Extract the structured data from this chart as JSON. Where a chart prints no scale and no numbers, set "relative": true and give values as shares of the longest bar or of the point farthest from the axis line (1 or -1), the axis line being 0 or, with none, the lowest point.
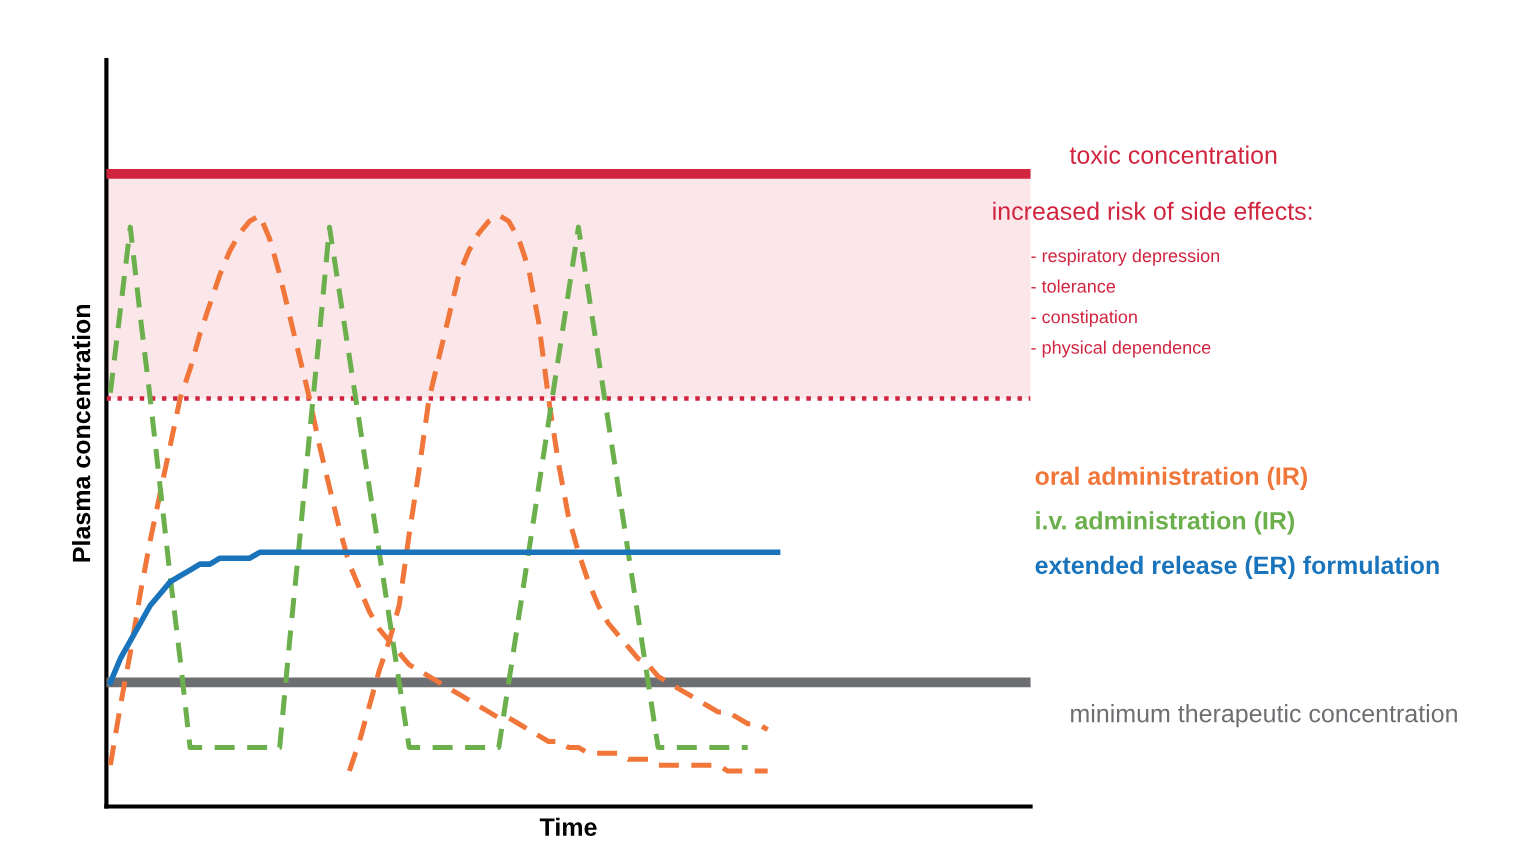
{
  "chart_data": {
    "type": "line",
    "relative": true,
    "xlabel": "Time",
    "ylabel": "Plasma concentration",
    "categories": [
      null,
      null,
      null,
      null,
      null,
      null,
      null,
      null,
      null,
      null,
      null,
      null,
      null,
      null,
      null,
      null,
      null,
      null,
      null,
      null,
      null,
      null,
      null,
      null,
      null,
      null,
      null,
      null,
      null,
      null,
      null,
      null,
      null,
      null,
      null,
      null,
      null,
      null,
      null,
      null,
      null,
      null,
      null,
      null,
      null,
      null,
      null,
      null,
      null,
      null,
      null,
      null,
      null,
      null,
      null,
      null,
      null,
      null,
      null,
      null,
      null,
      null,
      null,
      null,
      null,
      null,
      null,
      null,
      null,
      null,
      null,
      null,
      null,
      null,
      null,
      null,
      null,
      null,
      null,
      null,
      null,
      null,
      null,
      null,
      null,
      null,
      null,
      null,
      null,
      null,
      null,
      null,
      null
    ],
    "series": [
      {
        "name": "oral administration (IR)",
        "color": "#f0763a",
        "line_style": "dashed",
        "values": [
          0.07,
          0.17,
          0.26,
          0.36,
          0.45,
          0.53,
          0.61,
          0.69,
          0.74,
          0.8,
          0.85,
          0.9,
          0.94,
          0.97,
          0.99,
          1.0,
          0.96,
          0.9,
          0.83,
          0.76,
          0.69,
          0.61,
          0.54,
          0.47,
          0.41,
          0.37,
          0.33,
          0.3,
          0.28,
          0.26,
          0.24,
          0.23,
          0.22,
          0.21,
          0.2,
          0.19,
          0.18,
          0.17,
          0.16,
          0.15,
          0.15,
          0.14,
          0.13,
          0.12,
          0.11,
          0.11,
          0.1,
          0.1,
          0.09,
          0.09,
          0.09,
          0.09,
          0.08,
          0.08,
          0.08,
          0.07,
          0.07,
          0.07,
          0.07,
          0.07,
          0.07,
          0.07,
          0.06,
          0.06,
          0.06,
          0.06,
          0.06,
          null,
          null,
          null,
          null,
          null,
          null,
          null,
          null,
          null,
          null,
          null,
          null,
          null,
          null,
          null,
          null,
          null,
          null,
          null,
          null,
          null,
          null,
          null,
          null,
          null,
          null
        ]
      },
      {
        "color": "#f0763a",
        "line_style": "dashed",
        "values": [
          null,
          null,
          null,
          null,
          null,
          null,
          null,
          null,
          null,
          null,
          null,
          null,
          null,
          null,
          null,
          null,
          null,
          null,
          null,
          null,
          null,
          null,
          null,
          null,
          0.06,
          0.11,
          0.17,
          0.23,
          0.28,
          0.34,
          0.46,
          0.57,
          0.69,
          0.76,
          0.83,
          0.9,
          0.94,
          0.97,
          0.99,
          1.0,
          0.99,
          0.96,
          0.91,
          0.82,
          0.69,
          0.58,
          0.49,
          0.43,
          0.38,
          0.34,
          0.31,
          0.29,
          0.27,
          0.25,
          0.24,
          0.22,
          0.21,
          0.2,
          0.19,
          0.18,
          0.17,
          0.16,
          0.16,
          0.15,
          0.14,
          0.14,
          0.13,
          null,
          null,
          null,
          null,
          null,
          null,
          null,
          null,
          null,
          null,
          null,
          null,
          null,
          null,
          null,
          null,
          null,
          null,
          null,
          null,
          null,
          null,
          null,
          null,
          null,
          null
        ]
      },
      {
        "name": "i.v. administration (IR)",
        "color": "#6cb04e",
        "line_style": "dashed",
        "values": [
          0.7,
          0.84,
          0.98,
          0.83,
          0.69,
          0.54,
          0.39,
          0.25,
          0.1,
          0.1,
          0.1,
          0.1,
          0.1,
          0.1,
          0.1,
          0.1,
          0.1,
          0.1,
          0.28,
          0.45,
          0.63,
          0.8,
          0.98,
          0.87,
          0.76,
          0.65,
          0.54,
          0.43,
          0.32,
          0.21,
          0.1,
          0.1,
          0.1,
          0.1,
          0.1,
          0.1,
          0.1,
          0.1,
          0.1,
          0.1,
          0.21,
          0.32,
          0.43,
          0.54,
          0.65,
          0.76,
          0.87,
          0.98,
          0.87,
          0.76,
          0.65,
          0.54,
          0.43,
          0.32,
          0.21,
          0.1,
          0.1,
          0.1,
          0.1,
          0.1,
          0.1,
          0.1,
          0.1,
          0.1,
          0.1,
          null,
          null,
          null,
          null,
          null,
          null,
          null,
          null,
          null,
          null,
          null,
          null,
          null,
          null,
          null,
          null,
          null,
          null,
          null,
          null,
          null,
          null,
          null,
          null,
          null,
          null,
          null,
          null
        ]
      },
      {
        "name": "extended release (ER) formulation",
        "color": "#1a74bb",
        "line_style": "solid",
        "values": [
          0.21,
          0.25,
          0.28,
          0.31,
          0.34,
          0.36,
          0.38,
          0.39,
          0.4,
          0.41,
          0.41,
          0.42,
          0.42,
          0.42,
          0.42,
          0.43,
          0.43,
          0.43,
          0.43,
          0.43,
          0.43,
          0.43,
          0.43,
          0.43,
          0.43,
          0.43,
          0.43,
          0.43,
          0.43,
          0.43,
          0.43,
          0.43,
          0.43,
          0.43,
          0.43,
          0.43,
          0.43,
          0.43,
          0.43,
          0.43,
          0.43,
          0.43,
          0.43,
          0.43,
          0.43,
          0.43,
          0.43,
          0.43,
          0.43,
          0.43,
          0.43,
          0.43,
          0.43,
          0.43,
          0.43,
          0.43,
          0.43,
          0.43,
          0.43,
          0.43,
          0.43,
          0.43,
          0.43,
          0.43,
          0.43,
          0.43,
          0.43,
          0.43,
          null,
          null,
          null,
          null,
          null,
          null,
          null,
          null,
          null,
          null,
          null,
          null,
          null,
          null,
          null,
          null,
          null,
          null,
          null,
          null,
          null,
          null,
          null,
          null,
          null
        ]
      }
    ],
    "ref_lines": [
      {
        "axis": "y",
        "value": 1.07,
        "label": "toxic concentration",
        "color": "#d0243f",
        "line_style": "solid"
      },
      {
        "axis": "y",
        "value": 0.69,
        "color": "#d0243f",
        "line_style": "dotted"
      },
      {
        "axis": "y",
        "value": 0.21,
        "label": "minimum therapeutic concentration",
        "color": "#6d6e71",
        "line_style": "solid"
      }
    ],
    "bands": [
      {
        "axis": "y",
        "from": 0.69,
        "to": 1.07,
        "label": "increased risk of side effects:",
        "color": "#fbe6ea"
      }
    ],
    "annotations": [
      "- respiratory depression",
      "- tolerance",
      "- constipation",
      "- physical dependence"
    ],
    "legend": "right"
  }
}
